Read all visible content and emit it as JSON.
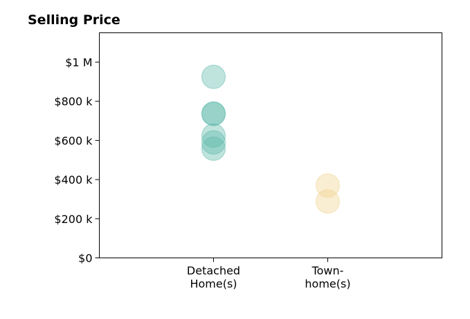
{
  "chart_data": {
    "type": "scatter",
    "title": "Selling Price",
    "xlabel": "",
    "ylabel": "",
    "categories": [
      "Detached Home(s)",
      "Town-home(s)"
    ],
    "category_labels": [
      [
        "Detached",
        "Home(s)"
      ],
      [
        "Town-",
        "home(s)"
      ]
    ],
    "xlim": [
      -1,
      2
    ],
    "ylim": [
      0,
      1150000
    ],
    "y_ticks": [
      0,
      200000,
      400000,
      600000,
      800000,
      1000000
    ],
    "y_tick_labels": [
      "$0",
      "$200 k",
      "$400 k",
      "$600 k",
      "$800 k",
      "$1 M"
    ],
    "grid": false,
    "legend": "none",
    "series": [
      {
        "category": "Detached Home(s)",
        "color": "#5fb9ab",
        "values": [
          925000,
          738000,
          735000,
          625000,
          590000,
          558000
        ]
      },
      {
        "category": "Town-home(s)",
        "color": "#f0d38f",
        "values": [
          370000,
          288000
        ]
      }
    ]
  }
}
